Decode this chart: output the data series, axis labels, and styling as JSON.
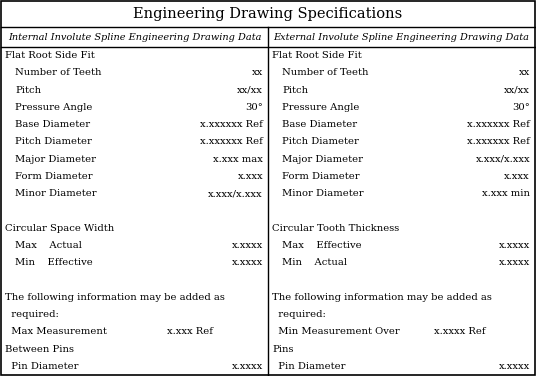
{
  "title": "Engineering Drawing Specifications",
  "col_header_left": "Internal Involute Spline Engineering Drawing Data",
  "col_header_right": "External Involute Spline Engineering Drawing Data",
  "left_rows": [
    {
      "label": "Flat Root Side Fit",
      "value": "",
      "indent": 0,
      "bold": false
    },
    {
      "label": "Number of Teeth",
      "value": "xx",
      "indent": 1
    },
    {
      "label": "Pitch",
      "value": "xx/xx",
      "indent": 1
    },
    {
      "label": "Pressure Angle",
      "value": "30°",
      "indent": 1
    },
    {
      "label": "Base Diameter",
      "value": "x.xxxxxx Ref",
      "indent": 1
    },
    {
      "label": "Pitch Diameter",
      "value": "x.xxxxxx Ref",
      "indent": 1
    },
    {
      "label": "Major Diameter",
      "value": "x.xxx max",
      "indent": 1
    },
    {
      "label": "Form Diameter",
      "value": "x.xxx",
      "indent": 1
    },
    {
      "label": "Minor Diameter",
      "value": "x.xxx/x.xxx",
      "indent": 1
    },
    {
      "label": "",
      "value": "",
      "indent": 0
    },
    {
      "label": "Circular Space Width",
      "value": "",
      "indent": 0
    },
    {
      "label": "Max    Actual",
      "value": "x.xxxx",
      "indent": 1
    },
    {
      "label": "Min    Effective",
      "value": "x.xxxx",
      "indent": 1
    },
    {
      "label": "",
      "value": "",
      "indent": 0
    },
    {
      "label": "The following information may be added as",
      "value": "",
      "indent": 0
    },
    {
      "label": "  required:",
      "value": "",
      "indent": 0
    },
    {
      "label": "  Max Measurement",
      "value": "x.xxx Ref",
      "indent": 0,
      "value_mid": true
    },
    {
      "label": "Between Pins",
      "value": "",
      "indent": 0
    },
    {
      "label": "  Pin Diameter",
      "value": "x.xxxx",
      "indent": 0
    }
  ],
  "right_rows": [
    {
      "label": "Flat Root Side Fit",
      "value": "",
      "indent": 0
    },
    {
      "label": "Number of Teeth",
      "value": "xx",
      "indent": 1
    },
    {
      "label": "Pitch",
      "value": "xx/xx",
      "indent": 1
    },
    {
      "label": "Pressure Angle",
      "value": "30°",
      "indent": 1
    },
    {
      "label": "Base Diameter",
      "value": "x.xxxxxx Ref",
      "indent": 1
    },
    {
      "label": "Pitch Diameter",
      "value": "x.xxxxxx Ref",
      "indent": 1
    },
    {
      "label": "Major Diameter",
      "value": "x.xxx/x.xxx",
      "indent": 1
    },
    {
      "label": "Form Diameter",
      "value": "x.xxx",
      "indent": 1
    },
    {
      "label": "Minor Diameter",
      "value": "x.xxx min",
      "indent": 1
    },
    {
      "label": "",
      "value": "",
      "indent": 0
    },
    {
      "label": "Circular Tooth Thickness",
      "value": "",
      "indent": 0
    },
    {
      "label": "Max    Effective",
      "value": "x.xxxx",
      "indent": 1
    },
    {
      "label": "Min    Actual",
      "value": "x.xxxx",
      "indent": 1
    },
    {
      "label": "",
      "value": "",
      "indent": 0
    },
    {
      "label": "The following information may be added as",
      "value": "",
      "indent": 0
    },
    {
      "label": "  required:",
      "value": "",
      "indent": 0
    },
    {
      "label": "  Min Measurement Over",
      "value": "x.xxxx Ref",
      "indent": 0,
      "value_mid": true
    },
    {
      "label": "Pins",
      "value": "",
      "indent": 0
    },
    {
      "label": "  Pin Diameter",
      "value": "x.xxxx",
      "indent": 0
    }
  ],
  "bg_color": "#ffffff",
  "border_color": "#000000",
  "font_size": 7.2,
  "title_font_size": 10.5,
  "header_font_size": 7.0
}
